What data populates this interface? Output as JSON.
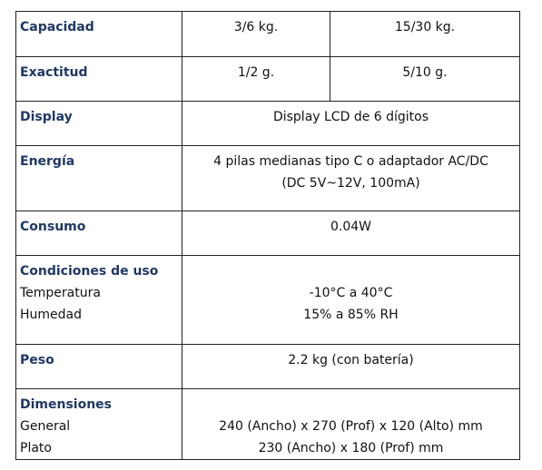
{
  "table": {
    "rows": [
      {
        "label": "Capacidad",
        "cells": [
          [
            "3/6 kg."
          ],
          [
            "15/30 kg."
          ]
        ]
      },
      {
        "label": "Exactitud",
        "cells": [
          [
            "1/2 g."
          ],
          [
            "5/10 g."
          ]
        ]
      },
      {
        "label": "Display",
        "cells": [
          [
            "Display LCD de 6 dígitos"
          ]
        ]
      },
      {
        "label": "Energía",
        "cells": [
          [
            "4 pilas medianas tipo C o adaptador AC/DC",
            "(DC 5V~12V, 100mA)"
          ]
        ]
      },
      {
        "label": "Consumo",
        "cells": [
          [
            "0.04W"
          ]
        ]
      },
      {
        "label": "Condiciones de uso",
        "sub": [
          "Temperatura",
          "Humedad"
        ],
        "cells": [
          [
            "-10°C a 40°C",
            "15% a 85% RH"
          ]
        ]
      },
      {
        "label": "Peso",
        "cells": [
          [
            "2.2 kg (con batería)"
          ]
        ]
      },
      {
        "label": "Dimensiones",
        "sub": [
          "General",
          "Plato"
        ],
        "cells": [
          [
            "240 (Ancho) x 270 (Prof) x 120 (Alto) mm",
            "230 (Ancho) x 180 (Prof) mm"
          ]
        ]
      }
    ]
  }
}
